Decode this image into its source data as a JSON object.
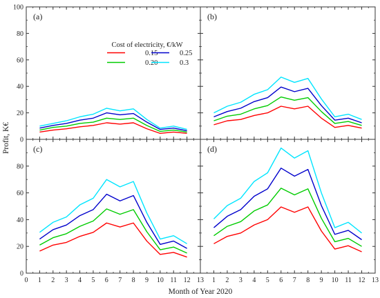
{
  "chart_data": {
    "type": "line",
    "xlabel": "Month of Year 2020",
    "ylabel": "Profit, K€",
    "xlim": [
      0,
      13
    ],
    "ylim": [
      0,
      100
    ],
    "x_ticks": [
      0,
      1,
      2,
      3,
      4,
      5,
      6,
      7,
      8,
      9,
      10,
      11,
      12,
      13
    ],
    "y_ticks": [
      0,
      20,
      40,
      60,
      80,
      100
    ],
    "x": [
      1,
      2,
      3,
      4,
      5,
      6,
      7,
      8,
      9,
      10,
      11,
      12
    ],
    "legend": {
      "title": "Cost of electricity, €/kW",
      "placement": "top panel (a), center-right",
      "entries": [
        {
          "label": "0.15",
          "color": "#ff0000"
        },
        {
          "label": "0.25",
          "color": "#0000cc"
        },
        {
          "label": "0.20",
          "color": "#00cc00"
        },
        {
          "label": "0.3",
          "color": "#00e5ff"
        }
      ]
    },
    "panels": [
      {
        "tag": "(a)",
        "series": [
          {
            "name": "0.15",
            "color": "#ff0000",
            "values": [
              5.5,
              7,
              8,
              9.5,
              10.5,
              12.5,
              11.5,
              12.5,
              8,
              4.5,
              5.5,
              4.5
            ]
          },
          {
            "name": "0.20",
            "color": "#00cc00",
            "values": [
              7,
              9,
              10,
              12,
              13,
              16,
              15,
              16,
              10.5,
              6,
              7,
              5.5
            ]
          },
          {
            "name": "0.25",
            "color": "#0000cc",
            "values": [
              8.5,
              10.5,
              12,
              14.5,
              16,
              20,
              18.5,
              19.5,
              13,
              7.5,
              8.5,
              6.5
            ]
          },
          {
            "name": "0.3",
            "color": "#00e5ff",
            "values": [
              10,
              12,
              14,
              17,
              19,
              23.5,
              21.5,
              23,
              15,
              8.5,
              10,
              7.5
            ]
          }
        ]
      },
      {
        "tag": "(b)",
        "series": [
          {
            "name": "0.15",
            "color": "#ff0000",
            "values": [
              11,
              14,
              15,
              18,
              20,
              25,
              23,
              25,
              16,
              9,
              10.5,
              8.5
            ]
          },
          {
            "name": "0.20",
            "color": "#00cc00",
            "values": [
              14,
              17.5,
              19,
              23,
              25.5,
              32,
              29.5,
              31.5,
              21,
              12,
              13.5,
              10.5
            ]
          },
          {
            "name": "0.25",
            "color": "#0000cc",
            "values": [
              17,
              21,
              23.5,
              28.5,
              31.5,
              39.5,
              36,
              38.5,
              25.5,
              14.5,
              16,
              12.5
            ]
          },
          {
            "name": "0.3",
            "color": "#00e5ff",
            "values": [
              20,
              25,
              28,
              34,
              37.5,
              47,
              43,
              46,
              30.5,
              17,
              19,
              15
            ]
          }
        ]
      },
      {
        "tag": "(c)",
        "series": [
          {
            "name": "0.15",
            "color": "#ff0000",
            "values": [
              16.5,
              21,
              23,
              27.5,
              30.5,
              37.5,
              34.5,
              37.5,
              24,
              14,
              15.5,
              12
            ]
          },
          {
            "name": "0.20",
            "color": "#00cc00",
            "values": [
              21,
              26.5,
              29.5,
              35,
              39,
              48,
              44,
              47.5,
              31,
              17.5,
              19.5,
              15
            ]
          },
          {
            "name": "0.25",
            "color": "#0000cc",
            "values": [
              25.5,
              32.5,
              36,
              43,
              47.5,
              59,
              54,
              58,
              38,
              21.5,
              24,
              18.5
            ]
          },
          {
            "name": "0.3",
            "color": "#00e5ff",
            "values": [
              30.5,
              38,
              42,
              51,
              56,
              70,
              64.5,
              68.5,
              45,
              25.5,
              28,
              22
            ]
          }
        ]
      },
      {
        "tag": "(d)",
        "series": [
          {
            "name": "0.15",
            "color": "#ff0000",
            "values": [
              22,
              27.5,
              30,
              36,
              40,
              49.5,
              45.5,
              49.5,
              31.5,
              18,
              20.5,
              16
            ]
          },
          {
            "name": "0.20",
            "color": "#00cc00",
            "values": [
              28,
              35,
              38.5,
              46.5,
              51,
              63.5,
              58.5,
              63,
              41,
              23.5,
              26,
              20
            ]
          },
          {
            "name": "0.25",
            "color": "#0000cc",
            "values": [
              34,
              42.5,
              47.5,
              57.5,
              63,
              78.5,
              72.5,
              77.5,
              50.5,
              29,
              32,
              25
            ]
          },
          {
            "name": "0.3",
            "color": "#00e5ff",
            "values": [
              40.5,
              50.5,
              56,
              68.5,
              75,
              93.5,
              86,
              91.5,
              60,
              34,
              38,
              30
            ]
          }
        ]
      }
    ]
  }
}
